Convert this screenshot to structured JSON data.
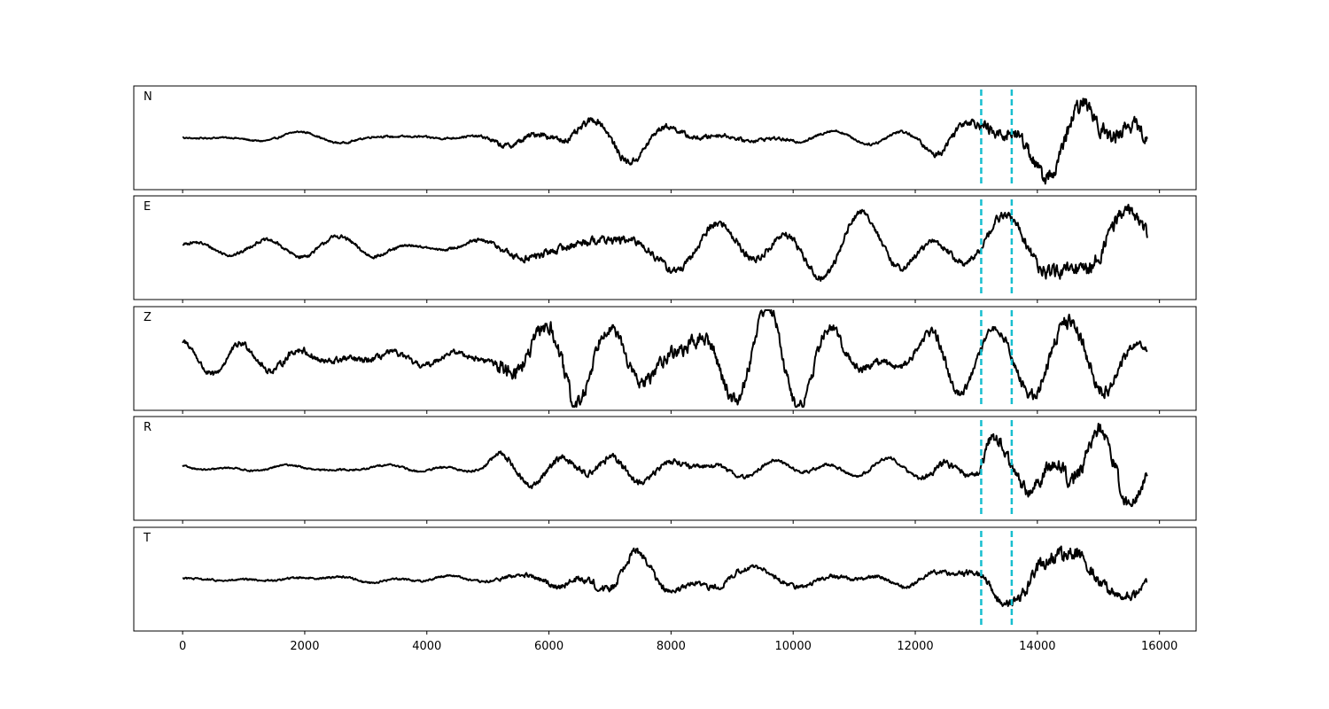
{
  "chart_data": {
    "type": "line",
    "title": "",
    "xlabel": "",
    "ylabel": "",
    "xlim": [
      -800,
      16600
    ],
    "x_ticks": [
      0,
      2000,
      4000,
      6000,
      8000,
      10000,
      12000,
      14000,
      16000
    ],
    "x_tick_labels": [
      "0",
      "2000",
      "4000",
      "6000",
      "8000",
      "10000",
      "12000",
      "14000",
      "16000"
    ],
    "x_range": [
      0,
      15800
    ],
    "grid": false,
    "legend": "none",
    "markers": {
      "color": "#17becf",
      "style": "dashed",
      "x": [
        13080,
        13580
      ]
    },
    "trace_color": "#000000",
    "panels": [
      {
        "name": "N",
        "envelope": [
          [
            0,
            0.08
          ],
          [
            4800,
            0.12
          ],
          [
            5200,
            0.3
          ],
          [
            6200,
            0.35
          ],
          [
            7000,
            0.42
          ],
          [
            8000,
            0.3
          ],
          [
            9000,
            0.22
          ],
          [
            10000,
            0.16
          ],
          [
            11000,
            0.12
          ],
          [
            12000,
            0.18
          ],
          [
            12400,
            0.4
          ],
          [
            13000,
            0.45
          ],
          [
            13200,
            0.8
          ],
          [
            13600,
            0.7
          ],
          [
            14000,
            0.85
          ],
          [
            15000,
            0.95
          ],
          [
            15800,
            0.7
          ]
        ]
      },
      {
        "name": "E",
        "envelope": [
          [
            0,
            0.15
          ],
          [
            2000,
            0.2
          ],
          [
            3000,
            0.22
          ],
          [
            4000,
            0.1
          ],
          [
            5000,
            0.25
          ],
          [
            5400,
            0.4
          ],
          [
            6000,
            0.45
          ],
          [
            8000,
            0.45
          ],
          [
            10000,
            0.4
          ],
          [
            12000,
            0.35
          ],
          [
            13000,
            0.4
          ],
          [
            13600,
            0.55
          ],
          [
            14000,
            0.75
          ],
          [
            15000,
            0.9
          ],
          [
            15800,
            0.75
          ]
        ]
      },
      {
        "name": "Z",
        "envelope": [
          [
            0,
            0.3
          ],
          [
            2000,
            0.4
          ],
          [
            4000,
            0.3
          ],
          [
            5000,
            0.3
          ],
          [
            5200,
            0.8
          ],
          [
            6400,
            1.0
          ],
          [
            7000,
            0.6
          ],
          [
            8000,
            0.8
          ],
          [
            9000,
            0.75
          ],
          [
            10000,
            0.7
          ],
          [
            11000,
            0.5
          ],
          [
            12000,
            0.4
          ],
          [
            12400,
            0.65
          ],
          [
            13000,
            0.4
          ],
          [
            13600,
            0.5
          ],
          [
            14200,
            0.85
          ],
          [
            15000,
            0.8
          ],
          [
            15800,
            0.3
          ]
        ]
      },
      {
        "name": "R",
        "envelope": [
          [
            0,
            0.08
          ],
          [
            4800,
            0.12
          ],
          [
            5200,
            0.3
          ],
          [
            6200,
            0.35
          ],
          [
            7000,
            0.4
          ],
          [
            8000,
            0.3
          ],
          [
            9000,
            0.22
          ],
          [
            10000,
            0.18
          ],
          [
            11000,
            0.15
          ],
          [
            12000,
            0.2
          ],
          [
            12400,
            0.4
          ],
          [
            13000,
            0.4
          ],
          [
            13200,
            0.85
          ],
          [
            13600,
            0.6
          ],
          [
            14000,
            0.8
          ],
          [
            15000,
            0.95
          ],
          [
            15800,
            0.6
          ]
        ]
      },
      {
        "name": "T",
        "envelope": [
          [
            0,
            0.1
          ],
          [
            4800,
            0.12
          ],
          [
            5200,
            0.2
          ],
          [
            6200,
            0.35
          ],
          [
            7200,
            0.5
          ],
          [
            8000,
            0.35
          ],
          [
            9000,
            0.3
          ],
          [
            10000,
            0.25
          ],
          [
            11000,
            0.2
          ],
          [
            12000,
            0.22
          ],
          [
            12600,
            0.25
          ],
          [
            13000,
            0.4
          ],
          [
            13600,
            0.5
          ],
          [
            14000,
            0.95
          ],
          [
            15000,
            0.7
          ],
          [
            15800,
            0.4
          ]
        ]
      }
    ]
  }
}
